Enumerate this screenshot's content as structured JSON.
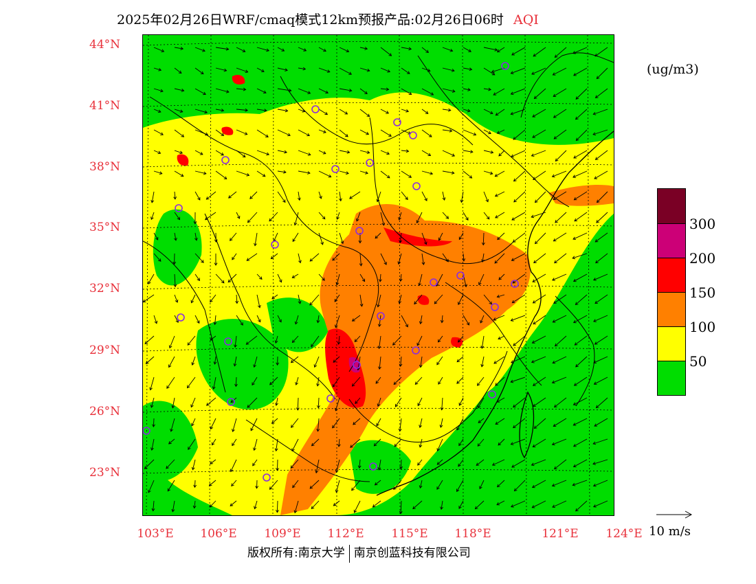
{
  "title": {
    "text": "2025年02月26日WRF/cmaq模式12km预报产品:02月26日06时",
    "product": "AQI"
  },
  "map": {
    "latitude_labels": [
      "44°N",
      "41°N",
      "38°N",
      "35°N",
      "32°N",
      "29°N",
      "26°N",
      "23°N"
    ],
    "longitude_labels": [
      "103°E",
      "106°E",
      "109°E",
      "112°E",
      "115°E",
      "118°E",
      "121°E",
      "124°E"
    ],
    "colors": {
      "good": "#00dd00",
      "moderate": "#ffff00",
      "sensitive": "#ff8000",
      "unhealthy": "#ff0000",
      "very_unhealthy": "#cc0077",
      "hazardous": "#7a0025",
      "station_marker": "#8a2be2"
    }
  },
  "legend": {
    "unit": "(ug/m3)",
    "labels": [
      "300",
      "200",
      "150",
      "100",
      "50"
    ],
    "colors": [
      "#7a0025",
      "#cc0077",
      "#ff0000",
      "#ff8000",
      "#ffff00",
      "#00dd00"
    ]
  },
  "wind_reference": {
    "label": "10 m/s"
  },
  "footer": {
    "left": "版权所有:南京大学",
    "right": "南京创蓝科技有限公司"
  }
}
